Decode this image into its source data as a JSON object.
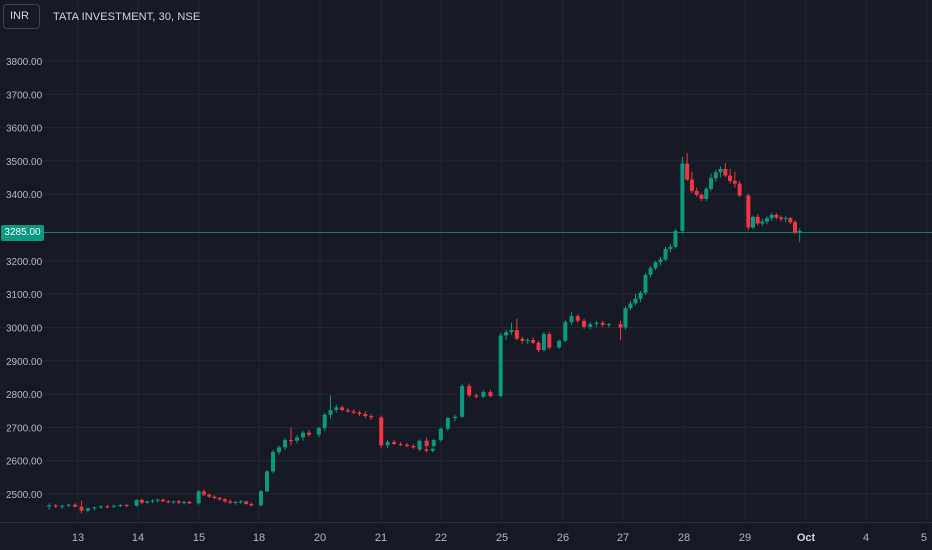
{
  "header": {
    "currency": "INR",
    "title": "TATA INVESTMENT, 30, NSE"
  },
  "price_tag": "3285.00",
  "colors": {
    "background": "#161a25",
    "grid": "#232733",
    "up": "#089981",
    "down": "#f23645",
    "text": "#b2b5be",
    "price_line": "#089981"
  },
  "chart_data": {
    "type": "candlestick",
    "y_ticks": [
      "2500.00",
      "2600.00",
      "2700.00",
      "2800.00",
      "2900.00",
      "3000.00",
      "3100.00",
      "3200.00",
      "3400.00",
      "3500.00",
      "3600.00",
      "3700.00",
      "3800.00"
    ],
    "y_tick_values": [
      2500,
      2600,
      2700,
      2800,
      2900,
      3000,
      3100,
      3200,
      3400,
      3500,
      3600,
      3700,
      3800
    ],
    "x_ticks": [
      "13",
      "14",
      "15",
      "18",
      "20",
      "21",
      "22",
      "25",
      "26",
      "27",
      "28",
      "29",
      "Oct",
      "4",
      "5"
    ],
    "ylim": [
      2440,
      3880
    ],
    "last_price": 3285,
    "grid": true,
    "candles": [
      {
        "d": "13",
        "s": [
          [
            2462,
            2472,
            2452,
            2466
          ],
          [
            2466,
            2470,
            2458,
            2463
          ],
          [
            2463,
            2468,
            2455,
            2465
          ],
          [
            2465,
            2470,
            2460,
            2468
          ],
          [
            2468,
            2472,
            2460,
            2462
          ],
          [
            2462,
            2480,
            2442,
            2450
          ],
          [
            2450,
            2460,
            2445,
            2457
          ],
          [
            2457,
            2462,
            2450,
            2460
          ],
          [
            2460,
            2466,
            2455,
            2463
          ],
          [
            2463,
            2468,
            2457,
            2462
          ],
          [
            2462,
            2468,
            2458,
            2465
          ],
          [
            2465,
            2470,
            2460,
            2467
          ],
          [
            2467,
            2470,
            2460,
            2465
          ]
        ]
      },
      {
        "d": "14",
        "s": [
          [
            2465,
            2484,
            2462,
            2482
          ],
          [
            2482,
            2486,
            2470,
            2474
          ],
          [
            2474,
            2480,
            2470,
            2478
          ],
          [
            2478,
            2484,
            2472,
            2480
          ],
          [
            2480,
            2486,
            2474,
            2483
          ],
          [
            2483,
            2486,
            2476,
            2478
          ],
          [
            2478,
            2482,
            2472,
            2476
          ],
          [
            2476,
            2480,
            2470,
            2478
          ],
          [
            2478,
            2482,
            2470,
            2474
          ],
          [
            2474,
            2480,
            2468,
            2476
          ],
          [
            2476,
            2480,
            2470,
            2472
          ]
        ]
      },
      {
        "d": "15",
        "s": [
          [
            2472,
            2512,
            2468,
            2508
          ],
          [
            2508,
            2514,
            2494,
            2498
          ],
          [
            2498,
            2502,
            2488,
            2492
          ],
          [
            2492,
            2496,
            2484,
            2488
          ],
          [
            2488,
            2492,
            2480,
            2484
          ],
          [
            2484,
            2488,
            2474,
            2478
          ],
          [
            2478,
            2484,
            2470,
            2474
          ],
          [
            2474,
            2480,
            2468,
            2476
          ],
          [
            2476,
            2482,
            2470,
            2478
          ],
          [
            2478,
            2480,
            2468,
            2470
          ],
          [
            2470,
            2474,
            2462,
            2466
          ]
        ]
      },
      {
        "d": "18",
        "s": [
          [
            2466,
            2512,
            2462,
            2508
          ],
          [
            2508,
            2572,
            2505,
            2568
          ],
          [
            2568,
            2632,
            2562,
            2626
          ],
          [
            2626,
            2646,
            2618,
            2640
          ],
          [
            2640,
            2668,
            2632,
            2662
          ],
          [
            2662,
            2700,
            2646,
            2660
          ],
          [
            2660,
            2676,
            2652,
            2670
          ],
          [
            2670,
            2690,
            2660,
            2684
          ],
          [
            2684,
            2692,
            2672,
            2678
          ]
        ]
      },
      {
        "d": "20",
        "s": [
          [
            2678,
            2702,
            2670,
            2698
          ],
          [
            2698,
            2744,
            2690,
            2738
          ],
          [
            2738,
            2796,
            2726,
            2752
          ],
          [
            2752,
            2768,
            2744,
            2760
          ],
          [
            2760,
            2766,
            2748,
            2752
          ],
          [
            2752,
            2758,
            2744,
            2748
          ],
          [
            2748,
            2754,
            2740,
            2744
          ],
          [
            2744,
            2750,
            2734,
            2740
          ],
          [
            2740,
            2748,
            2728,
            2734
          ],
          [
            2734,
            2740,
            2722,
            2730
          ]
        ]
      },
      {
        "d": "21",
        "s": [
          [
            2730,
            2736,
            2638,
            2646
          ],
          [
            2646,
            2662,
            2638,
            2656
          ],
          [
            2656,
            2662,
            2646,
            2650
          ],
          [
            2650,
            2656,
            2644,
            2648
          ],
          [
            2648,
            2654,
            2640,
            2644
          ],
          [
            2644,
            2650,
            2636,
            2640
          ],
          [
            2640,
            2646,
            2628,
            2634
          ],
          [
            2634,
            2640,
            2624,
            2630
          ],
          [
            2630,
            2638,
            2624,
            2636
          ]
        ]
      },
      {
        "d": "22",
        "s": [
          [
            2636,
            2664,
            2630,
            2660
          ],
          [
            2660,
            2670,
            2640,
            2644
          ],
          [
            2644,
            2666,
            2640,
            2662
          ],
          [
            2662,
            2700,
            2656,
            2696
          ],
          [
            2696,
            2732,
            2690,
            2728
          ],
          [
            2728,
            2738,
            2718,
            2732
          ],
          [
            2732,
            2830,
            2728,
            2824
          ],
          [
            2824,
            2832,
            2790,
            2796
          ],
          [
            2796,
            2802,
            2786,
            2792
          ],
          [
            2792,
            2812,
            2788,
            2806
          ],
          [
            2806,
            2812,
            2790,
            2794
          ]
        ]
      },
      {
        "d": "25",
        "s": [
          [
            2794,
            2984,
            2790,
            2976
          ],
          [
            2976,
            2994,
            2962,
            2986
          ],
          [
            2986,
            3014,
            2978,
            2992
          ],
          [
            2992,
            3026,
            2962,
            2966
          ],
          [
            2966,
            2972,
            2952,
            2960
          ],
          [
            2960,
            2968,
            2950,
            2962
          ],
          [
            2962,
            2970,
            2950,
            2954
          ],
          [
            2954,
            2960,
            2926,
            2932
          ],
          [
            2932,
            2986,
            2928,
            2980
          ],
          [
            2980,
            2986,
            2934,
            2940
          ]
        ]
      },
      {
        "d": "26",
        "s": [
          [
            2940,
            2964,
            2936,
            2960
          ],
          [
            2960,
            3022,
            2956,
            3016
          ],
          [
            3016,
            3046,
            3008,
            3034
          ],
          [
            3034,
            3040,
            3014,
            3020
          ],
          [
            3020,
            3026,
            2996,
            3002
          ],
          [
            3002,
            3016,
            2994,
            3010
          ],
          [
            3010,
            3020,
            3000,
            3014
          ],
          [
            3014,
            3020,
            3002,
            3008
          ],
          [
            3008,
            3014,
            3000,
            3010
          ]
        ]
      },
      {
        "d": "27",
        "s": [
          [
            3010,
            3020,
            2962,
            3000
          ],
          [
            3000,
            3064,
            2994,
            3058
          ],
          [
            3058,
            3080,
            3052,
            3072
          ],
          [
            3072,
            3102,
            3066,
            3086
          ],
          [
            3086,
            3110,
            3076,
            3104
          ],
          [
            3104,
            3164,
            3098,
            3158
          ],
          [
            3158,
            3184,
            3150,
            3178
          ],
          [
            3178,
            3200,
            3172,
            3196
          ],
          [
            3196,
            3212,
            3186,
            3204
          ],
          [
            3204,
            3242,
            3198,
            3236
          ],
          [
            3236,
            3250,
            3226,
            3242
          ],
          [
            3242,
            3296,
            3238,
            3290
          ]
        ]
      },
      {
        "d": "28",
        "s": [
          [
            3290,
            3512,
            3282,
            3492
          ],
          [
            3492,
            3524,
            3440,
            3444
          ],
          [
            3444,
            3468,
            3404,
            3410
          ],
          [
            3410,
            3420,
            3392,
            3398
          ],
          [
            3398,
            3404,
            3380,
            3386
          ],
          [
            3386,
            3422,
            3380,
            3416
          ],
          [
            3416,
            3462,
            3410,
            3448
          ],
          [
            3448,
            3474,
            3438,
            3466
          ],
          [
            3466,
            3484,
            3450,
            3476
          ],
          [
            3476,
            3494,
            3452,
            3456
          ],
          [
            3456,
            3476,
            3432,
            3440
          ],
          [
            3440,
            3468,
            3420,
            3432
          ],
          [
            3432,
            3440,
            3392,
            3396
          ]
        ]
      },
      {
        "d": "29",
        "s": [
          [
            3396,
            3402,
            3292,
            3300
          ],
          [
            3300,
            3336,
            3296,
            3332
          ],
          [
            3332,
            3340,
            3306,
            3312
          ],
          [
            3312,
            3326,
            3304,
            3318
          ],
          [
            3318,
            3334,
            3310,
            3328
          ],
          [
            3328,
            3344,
            3320,
            3338
          ],
          [
            3338,
            3344,
            3324,
            3330
          ],
          [
            3330,
            3336,
            3318,
            3326
          ],
          [
            3326,
            3334,
            3316,
            3328
          ],
          [
            3328,
            3332,
            3310,
            3316
          ],
          [
            3316,
            3322,
            3280,
            3286
          ],
          [
            3286,
            3298,
            3256,
            3290
          ]
        ]
      }
    ]
  }
}
